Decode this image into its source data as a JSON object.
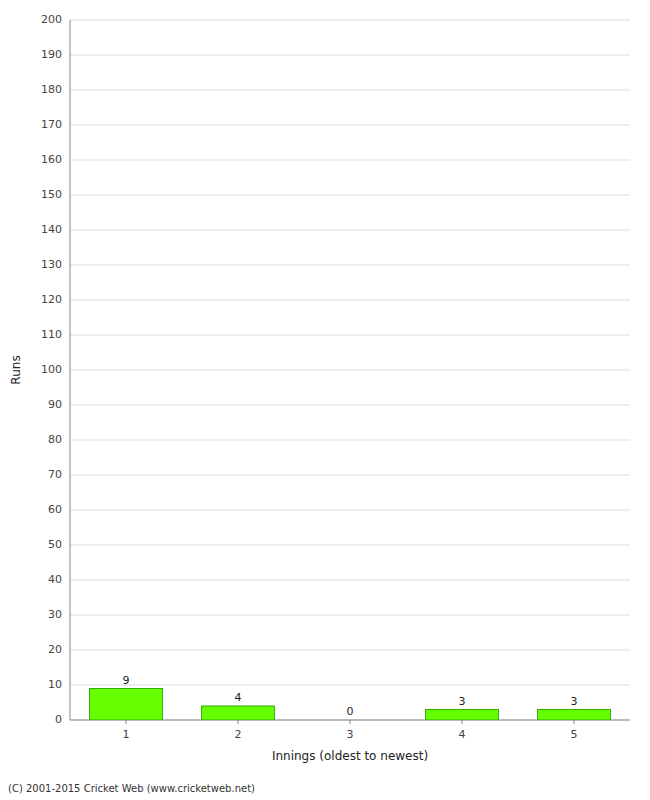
{
  "chart_data": {
    "type": "bar",
    "categories": [
      1,
      2,
      3,
      4,
      5
    ],
    "values": [
      9,
      4,
      0,
      3,
      3
    ],
    "color": "#66ff00",
    "x_label": "Innings (oldest to newest)",
    "y_label": "Runs",
    "footnote": "(C) 2001-2015 Cricket Web (www.cricketweb.net)",
    "ylim": [
      0,
      200
    ],
    "yticks": [
      0,
      10,
      20,
      30,
      40,
      50,
      60,
      70,
      80,
      90,
      100,
      110,
      120,
      130,
      140,
      150,
      160,
      170,
      180,
      190,
      200
    ],
    "grid": true,
    "data_labels": true
  }
}
